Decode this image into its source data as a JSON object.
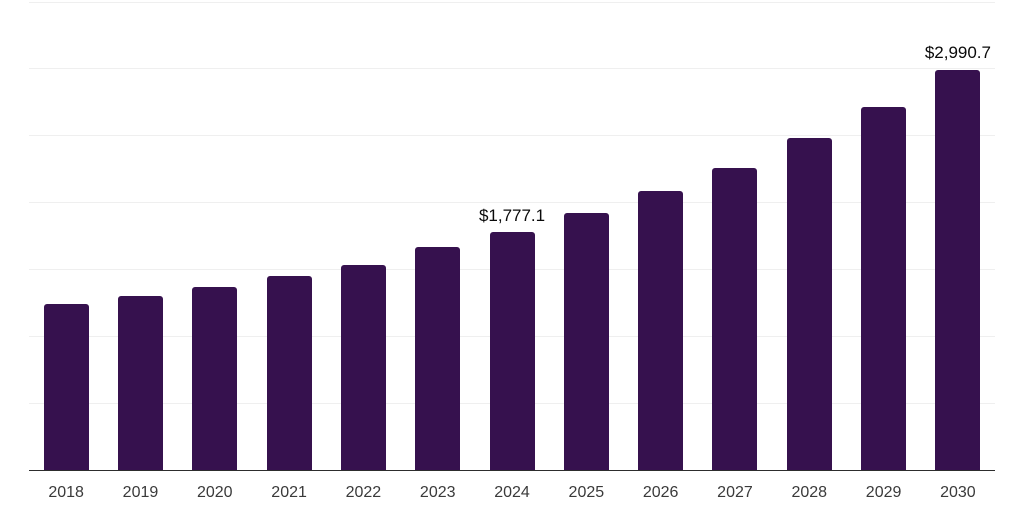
{
  "chart_data": {
    "type": "bar",
    "title": "",
    "xlabel": "",
    "ylabel": "",
    "categories": [
      "2018",
      "2019",
      "2020",
      "2021",
      "2022",
      "2023",
      "2024",
      "2025",
      "2026",
      "2027",
      "2028",
      "2029",
      "2030"
    ],
    "values": [
      1240,
      1300,
      1370,
      1450,
      1535,
      1665,
      1777.1,
      1925,
      2085,
      2260,
      2480,
      2713,
      2990.7
    ],
    "value_labels": [
      "",
      "",
      "",
      "",
      "",
      "",
      "$1,777.1",
      "",
      "",
      "",
      "",
      "",
      "$2,990.7"
    ],
    "ylim": [
      0,
      3500
    ],
    "gridline_step": 500,
    "grid": "horizontal-only",
    "legend_position": "none",
    "y_axis_tick_labels_visible": false,
    "colors": {
      "bar": "#36114e",
      "axis_line": "#2d2d2d",
      "gridline": "#efefef",
      "tick_label": "#3a3a3a",
      "value_label": "#0a0a0a",
      "background": "#ffffff"
    }
  }
}
